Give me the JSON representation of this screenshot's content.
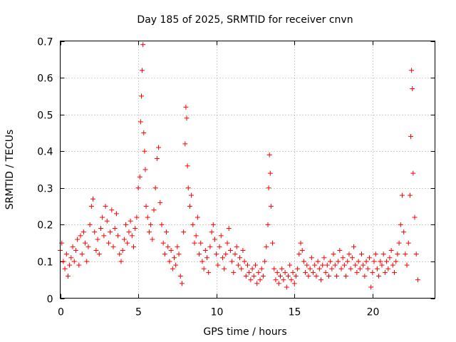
{
  "chart_data": {
    "type": "scatter",
    "title": "Day 185 of 2025, SRMTID for receiver cnvn",
    "xlabel": "GPS time / hours",
    "ylabel": "SRMTID / TECUs",
    "xlim": [
      0,
      24
    ],
    "ylim": [
      0,
      0.7
    ],
    "xticks": [
      0,
      5,
      10,
      15,
      20
    ],
    "yticks": [
      0,
      0.1,
      0.2,
      0.3,
      0.4,
      0.5,
      0.6,
      0.7
    ],
    "grid": true,
    "marker": "+",
    "color": "#ff0000",
    "series": [
      {
        "name": "SRMTID",
        "points": [
          [
            0.0,
            0.13
          ],
          [
            0.1,
            0.15
          ],
          [
            0.2,
            0.1
          ],
          [
            0.3,
            0.08
          ],
          [
            0.4,
            0.12
          ],
          [
            0.5,
            0.06
          ],
          [
            0.6,
            0.09
          ],
          [
            0.7,
            0.11
          ],
          [
            0.8,
            0.14
          ],
          [
            0.9,
            0.1
          ],
          [
            1.0,
            0.13
          ],
          [
            1.1,
            0.16
          ],
          [
            1.2,
            0.09
          ],
          [
            1.3,
            0.17
          ],
          [
            1.4,
            0.12
          ],
          [
            1.5,
            0.18
          ],
          [
            1.6,
            0.15
          ],
          [
            1.7,
            0.1
          ],
          [
            1.8,
            0.14
          ],
          [
            1.9,
            0.2
          ],
          [
            2.0,
            0.25
          ],
          [
            2.1,
            0.27
          ],
          [
            2.2,
            0.18
          ],
          [
            2.3,
            0.13
          ],
          [
            2.4,
            0.16
          ],
          [
            2.5,
            0.12
          ],
          [
            2.6,
            0.19
          ],
          [
            2.7,
            0.22
          ],
          [
            2.8,
            0.17
          ],
          [
            2.9,
            0.25
          ],
          [
            3.0,
            0.21
          ],
          [
            3.1,
            0.15
          ],
          [
            3.2,
            0.18
          ],
          [
            3.3,
            0.24
          ],
          [
            3.4,
            0.14
          ],
          [
            3.5,
            0.19
          ],
          [
            3.6,
            0.23
          ],
          [
            3.7,
            0.17
          ],
          [
            3.8,
            0.12
          ],
          [
            3.9,
            0.1
          ],
          [
            4.0,
            0.13
          ],
          [
            4.1,
            0.16
          ],
          [
            4.2,
            0.2
          ],
          [
            4.3,
            0.15
          ],
          [
            4.4,
            0.18
          ],
          [
            4.5,
            0.21
          ],
          [
            4.6,
            0.17
          ],
          [
            4.7,
            0.14
          ],
          [
            4.8,
            0.19
          ],
          [
            4.9,
            0.22
          ],
          [
            5.0,
            0.3
          ],
          [
            5.1,
            0.33
          ],
          [
            5.15,
            0.48
          ],
          [
            5.2,
            0.55
          ],
          [
            5.25,
            0.62
          ],
          [
            5.3,
            0.69
          ],
          [
            5.35,
            0.45
          ],
          [
            5.4,
            0.4
          ],
          [
            5.45,
            0.35
          ],
          [
            5.5,
            0.25
          ],
          [
            5.6,
            0.22
          ],
          [
            5.7,
            0.18
          ],
          [
            5.8,
            0.2
          ],
          [
            5.9,
            0.16
          ],
          [
            6.0,
            0.24
          ],
          [
            6.1,
            0.3
          ],
          [
            6.2,
            0.38
          ],
          [
            6.3,
            0.41
          ],
          [
            6.4,
            0.26
          ],
          [
            6.5,
            0.2
          ],
          [
            6.6,
            0.15
          ],
          [
            6.7,
            0.12
          ],
          [
            6.8,
            0.18
          ],
          [
            6.9,
            0.14
          ],
          [
            7.0,
            0.1
          ],
          [
            7.1,
            0.13
          ],
          [
            7.2,
            0.08
          ],
          [
            7.3,
            0.11
          ],
          [
            7.4,
            0.09
          ],
          [
            7.5,
            0.14
          ],
          [
            7.6,
            0.12
          ],
          [
            7.7,
            0.06
          ],
          [
            7.8,
            0.04
          ],
          [
            7.9,
            0.18
          ],
          [
            8.0,
            0.42
          ],
          [
            8.05,
            0.52
          ],
          [
            8.1,
            0.49
          ],
          [
            8.15,
            0.36
          ],
          [
            8.2,
            0.3
          ],
          [
            8.3,
            0.25
          ],
          [
            8.4,
            0.28
          ],
          [
            8.5,
            0.2
          ],
          [
            8.6,
            0.15
          ],
          [
            8.7,
            0.17
          ],
          [
            8.8,
            0.22
          ],
          [
            8.9,
            0.12
          ],
          [
            9.0,
            0.15
          ],
          [
            9.1,
            0.1
          ],
          [
            9.2,
            0.08
          ],
          [
            9.3,
            0.13
          ],
          [
            9.4,
            0.11
          ],
          [
            9.5,
            0.07
          ],
          [
            9.6,
            0.14
          ],
          [
            9.7,
            0.18
          ],
          [
            9.8,
            0.2
          ],
          [
            9.9,
            0.16
          ],
          [
            10.0,
            0.12
          ],
          [
            10.1,
            0.09
          ],
          [
            10.2,
            0.14
          ],
          [
            10.3,
            0.17
          ],
          [
            10.4,
            0.11
          ],
          [
            10.5,
            0.08
          ],
          [
            10.6,
            0.12
          ],
          [
            10.7,
            0.15
          ],
          [
            10.8,
            0.19
          ],
          [
            10.9,
            0.13
          ],
          [
            11.0,
            0.1
          ],
          [
            11.1,
            0.07
          ],
          [
            11.2,
            0.12
          ],
          [
            11.3,
            0.14
          ],
          [
            11.4,
            0.09
          ],
          [
            11.5,
            0.11
          ],
          [
            11.6,
            0.08
          ],
          [
            11.7,
            0.13
          ],
          [
            11.8,
            0.1
          ],
          [
            11.9,
            0.06
          ],
          [
            12.0,
            0.09
          ],
          [
            12.1,
            0.07
          ],
          [
            12.2,
            0.05
          ],
          [
            12.3,
            0.08
          ],
          [
            12.4,
            0.06
          ],
          [
            12.5,
            0.09
          ],
          [
            12.6,
            0.04
          ],
          [
            12.7,
            0.07
          ],
          [
            12.8,
            0.05
          ],
          [
            12.9,
            0.08
          ],
          [
            13.0,
            0.06
          ],
          [
            13.1,
            0.1
          ],
          [
            13.2,
            0.14
          ],
          [
            13.3,
            0.2
          ],
          [
            13.35,
            0.3
          ],
          [
            13.4,
            0.39
          ],
          [
            13.45,
            0.34
          ],
          [
            13.5,
            0.25
          ],
          [
            13.6,
            0.15
          ],
          [
            13.7,
            0.08
          ],
          [
            13.8,
            0.05
          ],
          [
            13.9,
            0.07
          ],
          [
            14.0,
            0.04
          ],
          [
            14.1,
            0.06
          ],
          [
            14.2,
            0.08
          ],
          [
            14.3,
            0.05
          ],
          [
            14.4,
            0.07
          ],
          [
            14.5,
            0.03
          ],
          [
            14.6,
            0.06
          ],
          [
            14.7,
            0.09
          ],
          [
            14.8,
            0.05
          ],
          [
            14.9,
            0.07
          ],
          [
            15.0,
            0.04
          ],
          [
            15.1,
            0.06
          ],
          [
            15.2,
            0.08
          ],
          [
            15.3,
            0.12
          ],
          [
            15.4,
            0.15
          ],
          [
            15.5,
            0.13
          ],
          [
            15.6,
            0.1
          ],
          [
            15.7,
            0.07
          ],
          [
            15.8,
            0.09
          ],
          [
            15.9,
            0.06
          ],
          [
            16.0,
            0.08
          ],
          [
            16.1,
            0.11
          ],
          [
            16.2,
            0.07
          ],
          [
            16.3,
            0.09
          ],
          [
            16.4,
            0.06
          ],
          [
            16.5,
            0.1
          ],
          [
            16.6,
            0.08
          ],
          [
            16.7,
            0.05
          ],
          [
            16.8,
            0.09
          ],
          [
            16.9,
            0.11
          ],
          [
            17.0,
            0.07
          ],
          [
            17.1,
            0.09
          ],
          [
            17.2,
            0.06
          ],
          [
            17.3,
            0.1
          ],
          [
            17.4,
            0.08
          ],
          [
            17.5,
            0.12
          ],
          [
            17.6,
            0.09
          ],
          [
            17.7,
            0.06
          ],
          [
            17.8,
            0.1
          ],
          [
            17.9,
            0.13
          ],
          [
            18.0,
            0.08
          ],
          [
            18.1,
            0.11
          ],
          [
            18.2,
            0.09
          ],
          [
            18.3,
            0.06
          ],
          [
            18.4,
            0.1
          ],
          [
            18.5,
            0.12
          ],
          [
            18.6,
            0.08
          ],
          [
            18.7,
            0.11
          ],
          [
            18.8,
            0.14
          ],
          [
            18.9,
            0.09
          ],
          [
            19.0,
            0.07
          ],
          [
            19.1,
            0.1
          ],
          [
            19.2,
            0.08
          ],
          [
            19.3,
            0.12
          ],
          [
            19.4,
            0.09
          ],
          [
            19.5,
            0.06
          ],
          [
            19.6,
            0.1
          ],
          [
            19.7,
            0.08
          ],
          [
            19.8,
            0.11
          ],
          [
            19.9,
            0.03
          ],
          [
            20.0,
            0.07
          ],
          [
            20.1,
            0.1
          ],
          [
            20.2,
            0.12
          ],
          [
            20.3,
            0.08
          ],
          [
            20.4,
            0.06
          ],
          [
            20.5,
            0.1
          ],
          [
            20.6,
            0.09
          ],
          [
            20.7,
            0.12
          ],
          [
            20.8,
            0.07
          ],
          [
            20.9,
            0.1
          ],
          [
            21.0,
            0.08
          ],
          [
            21.1,
            0.11
          ],
          [
            21.2,
            0.13
          ],
          [
            21.3,
            0.09
          ],
          [
            21.4,
            0.07
          ],
          [
            21.5,
            0.1
          ],
          [
            21.6,
            0.12
          ],
          [
            21.7,
            0.15
          ],
          [
            21.8,
            0.2
          ],
          [
            21.9,
            0.28
          ],
          [
            22.0,
            0.18
          ],
          [
            22.1,
            0.12
          ],
          [
            22.2,
            0.09
          ],
          [
            22.3,
            0.15
          ],
          [
            22.4,
            0.28
          ],
          [
            22.45,
            0.44
          ],
          [
            22.5,
            0.62
          ],
          [
            22.55,
            0.57
          ],
          [
            22.6,
            0.34
          ],
          [
            22.7,
            0.22
          ],
          [
            22.8,
            0.12
          ],
          [
            22.9,
            0.05
          ]
        ]
      }
    ]
  }
}
